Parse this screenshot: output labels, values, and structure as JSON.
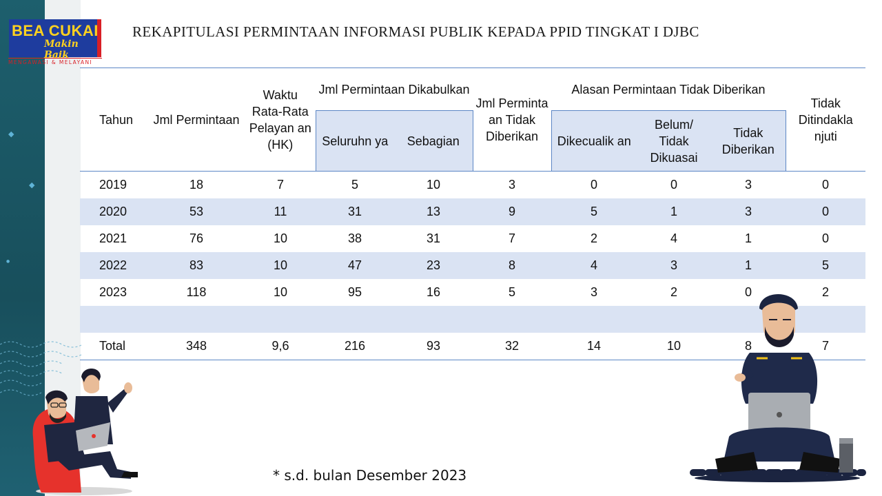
{
  "logo": {
    "main": "BEA CUKAI",
    "sub": "Makin Baik",
    "tagline": "MENGAWASI & MELAYANI"
  },
  "title": "REKAPITULASI PERMINTAAN INFORMASI PUBLIK KEPADA PPID TINGKAT I DJBC",
  "table": {
    "headers": {
      "tahun": "Tahun",
      "jml_permintaan": "Jml Permintaan",
      "waktu": "Waktu Rata-Rata Pelayan an (HK)",
      "dikabulkan_group": "Jml Permintaan Dikabulkan",
      "seluruhnya": "Seluruhn ya",
      "sebagian": "Sebagian",
      "tidak_diberikan_count": "Jml Perminta an Tidak Diberikan",
      "alasan_group": "Alasan Permintaan Tidak Diberikan",
      "dikecualikan": "Dikecualik an",
      "belum_dikuasai": "Belum/ Tidak Dikuasai",
      "tidak_diberikan": "Tidak Diberikan",
      "tidak_ditindaklanjuti": "Tidak Ditindakla njuti"
    },
    "rows": [
      [
        "2019",
        "18",
        "7",
        "5",
        "10",
        "3",
        "0",
        "0",
        "3",
        "0"
      ],
      [
        "2020",
        "53",
        "11",
        "31",
        "13",
        "9",
        "5",
        "1",
        "3",
        "0"
      ],
      [
        "2021",
        "76",
        "10",
        "38",
        "31",
        "7",
        "2",
        "4",
        "1",
        "0"
      ],
      [
        "2022",
        "83",
        "10",
        "47",
        "23",
        "8",
        "4",
        "3",
        "1",
        "5"
      ],
      [
        "2023",
        "118",
        "10",
        "95",
        "16",
        "5",
        "3",
        "2",
        "0",
        "2"
      ],
      [
        "",
        "",
        "",
        "",
        "",
        "",
        "",
        "",
        "",
        ""
      ],
      [
        "Total",
        "348",
        "9,6",
        "216",
        "93",
        "32",
        "14",
        "10",
        "8",
        "7"
      ]
    ]
  },
  "footnote": "* s.d. bulan Desember 2023",
  "colors": {
    "band": "#dae3f3",
    "rule": "#5b86c5",
    "strip": "#1d5f6d",
    "logo_blue": "#1e3c9e",
    "logo_yellow": "#ffd21f",
    "logo_red": "#d91f26"
  }
}
